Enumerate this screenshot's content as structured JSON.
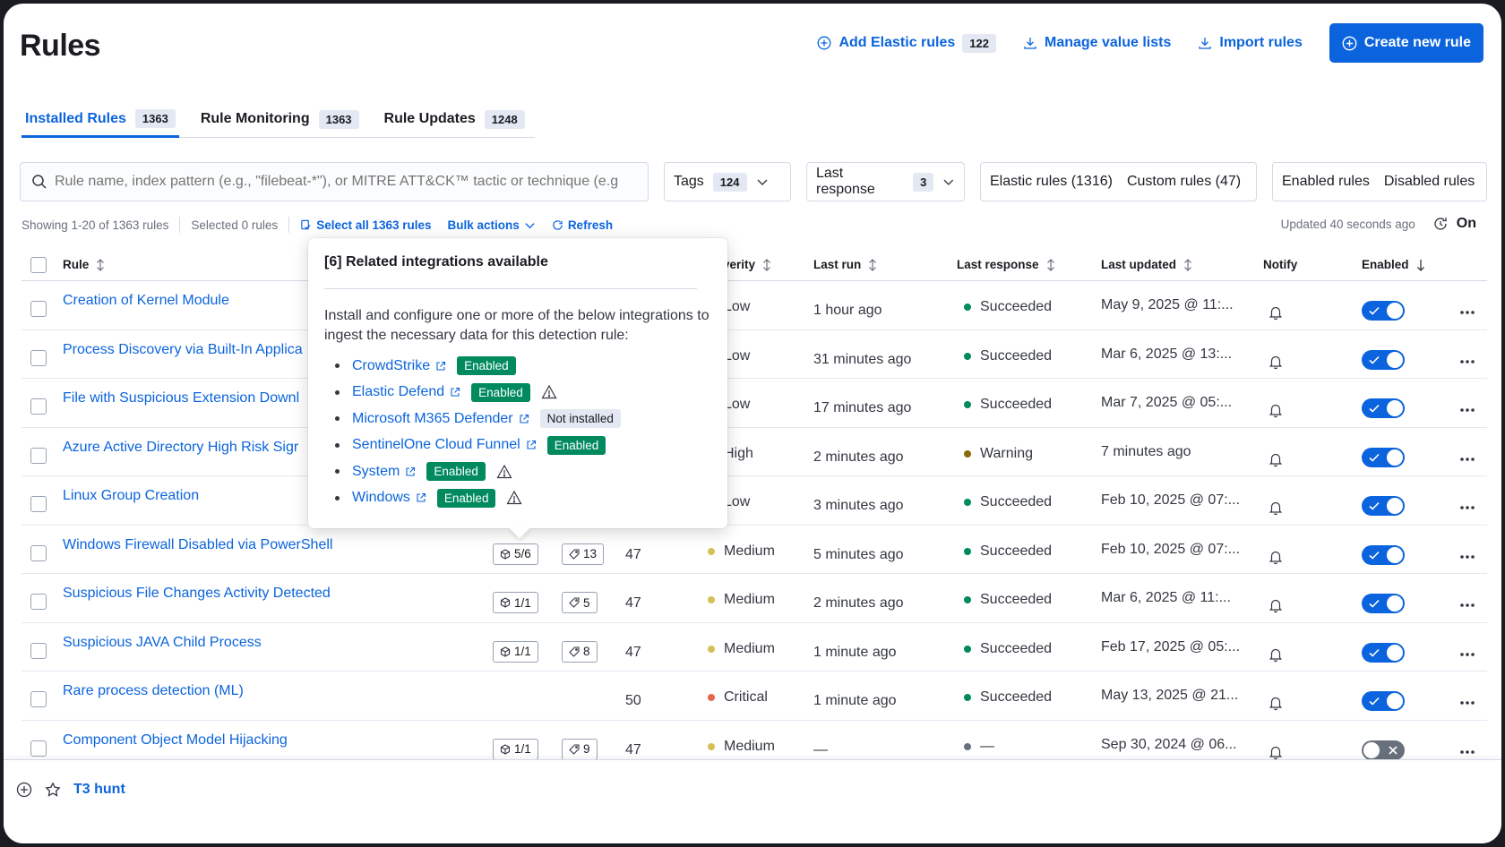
{
  "page": {
    "title": "Rules"
  },
  "header": {
    "add_elastic_rules": {
      "label": "Add Elastic rules",
      "count": "122"
    },
    "manage_value_lists": "Manage value lists",
    "import_rules": "Import rules",
    "create_new_rule": "Create new rule"
  },
  "tabs": [
    {
      "label": "Installed Rules",
      "count": "1363",
      "active": true
    },
    {
      "label": "Rule Monitoring",
      "count": "1363",
      "active": false
    },
    {
      "label": "Rule Updates",
      "count": "1248",
      "active": false
    }
  ],
  "filters": {
    "search_placeholder": "Rule name, index pattern (e.g., \"filebeat-*\"), or MITRE ATT&CK™ tactic or technique (e.g",
    "tags": {
      "label": "Tags",
      "count": "124"
    },
    "last_response": {
      "label": "Last response",
      "count": "3"
    },
    "elastic_rules": "Elastic rules (1316)",
    "custom_rules": "Custom rules (47)",
    "enabled_rules": "Enabled rules",
    "disabled_rules": "Disabled rules"
  },
  "utility": {
    "showing": "Showing 1-20 of 1363 rules",
    "selected": "Selected 0 rules",
    "select_all": "Select all 1363 rules",
    "bulk_actions": "Bulk actions",
    "refresh": "Refresh",
    "updated": "Updated 40 seconds ago",
    "auto_refresh": "On"
  },
  "table": {
    "columns": {
      "rule": "Rule",
      "severity": "verity",
      "last_run": "Last run",
      "last_response": "Last response",
      "last_updated": "Last updated",
      "notify": "Notify",
      "enabled": "Enabled"
    },
    "rows": [
      {
        "name": "Creation of Kernel Module",
        "integrations": "",
        "tags": "",
        "risk": "",
        "severity": "Low",
        "sev_color": "#54b399",
        "last_run": "1 hour ago",
        "response": "Succeeded",
        "resp_color": "#008a5e",
        "updated": "May 9, 2025 @ 11:...",
        "enabled": true
      },
      {
        "name": "Process Discovery via Built-In Applica",
        "integrations": "",
        "tags": "",
        "risk": "",
        "severity": "Low",
        "sev_color": "#54b399",
        "last_run": "31 minutes ago",
        "response": "Succeeded",
        "resp_color": "#008a5e",
        "updated": "Mar 6, 2025 @ 13:...",
        "enabled": true
      },
      {
        "name": "File with Suspicious Extension Downl",
        "integrations": "",
        "tags": "",
        "risk": "",
        "severity": "Low",
        "sev_color": "#54b399",
        "last_run": "17 minutes ago",
        "response": "Succeeded",
        "resp_color": "#008a5e",
        "updated": "Mar 7, 2025 @ 05:...",
        "enabled": true
      },
      {
        "name": "Azure Active Directory High Risk Sigr",
        "integrations": "",
        "tags": "",
        "risk": "",
        "severity": "High",
        "sev_color": "#da8b45",
        "last_run": "2 minutes ago",
        "response": "Warning",
        "resp_color": "#8a6a0a",
        "updated": "7 minutes ago",
        "enabled": true
      },
      {
        "name": "Linux Group Creation",
        "integrations": "",
        "tags": "",
        "risk": "",
        "severity": "Low",
        "sev_color": "#54b399",
        "last_run": "3 minutes ago",
        "response": "Succeeded",
        "resp_color": "#008a5e",
        "updated": "Feb 10, 2025 @ 07:...",
        "enabled": true
      },
      {
        "name": "Windows Firewall Disabled via PowerShell",
        "integrations": "5/6",
        "tags": "13",
        "risk": "47",
        "severity": "Medium",
        "sev_color": "#d6bf57",
        "last_run": "5 minutes ago",
        "response": "Succeeded",
        "resp_color": "#008a5e",
        "updated": "Feb 10, 2025 @ 07:...",
        "enabled": true
      },
      {
        "name": "Suspicious File Changes Activity Detected",
        "integrations": "1/1",
        "tags": "5",
        "risk": "47",
        "severity": "Medium",
        "sev_color": "#d6bf57",
        "last_run": "2 minutes ago",
        "response": "Succeeded",
        "resp_color": "#008a5e",
        "updated": "Mar 6, 2025 @ 11:...",
        "enabled": true
      },
      {
        "name": "Suspicious JAVA Child Process",
        "integrations": "1/1",
        "tags": "8",
        "risk": "47",
        "severity": "Medium",
        "sev_color": "#d6bf57",
        "last_run": "1 minute ago",
        "response": "Succeeded",
        "resp_color": "#008a5e",
        "updated": "Feb 17, 2025 @ 05:...",
        "enabled": true
      },
      {
        "name": "Rare process detection (ML)",
        "integrations": "",
        "tags": "",
        "risk": "50",
        "severity": "Critical",
        "sev_color": "#e7664c",
        "last_run": "1 minute ago",
        "response": "Succeeded",
        "resp_color": "#008a5e",
        "updated": "May 13, 2025 @ 21...",
        "enabled": true
      },
      {
        "name": "Component Object Model Hijacking",
        "integrations": "1/1",
        "tags": "9",
        "risk": "47",
        "severity": "Medium",
        "sev_color": "#d6bf57",
        "last_run": "—",
        "response": "—",
        "resp_color": "#69707d",
        "updated": "Sep 30, 2024 @ 06...",
        "enabled": false
      }
    ]
  },
  "popover": {
    "title": "[6] Related integrations available",
    "description": "Install and configure one or more of the below integrations to ingest the necessary data for this detection rule:",
    "integrations": [
      {
        "name": "CrowdStrike",
        "status": "Enabled",
        "warning": false
      },
      {
        "name": "Elastic Defend",
        "status": "Enabled",
        "warning": true
      },
      {
        "name": "Microsoft M365 Defender",
        "status": "Not installed",
        "warning": false
      },
      {
        "name": "SentinelOne Cloud Funnel",
        "status": "Enabled",
        "warning": false
      },
      {
        "name": "System",
        "status": "Enabled",
        "warning": true
      },
      {
        "name": "Windows",
        "status": "Enabled",
        "warning": true
      }
    ]
  },
  "timeline": {
    "title": "T3 hunt"
  },
  "colors": {
    "accent": "#0b64dd",
    "success": "#008a5e"
  }
}
